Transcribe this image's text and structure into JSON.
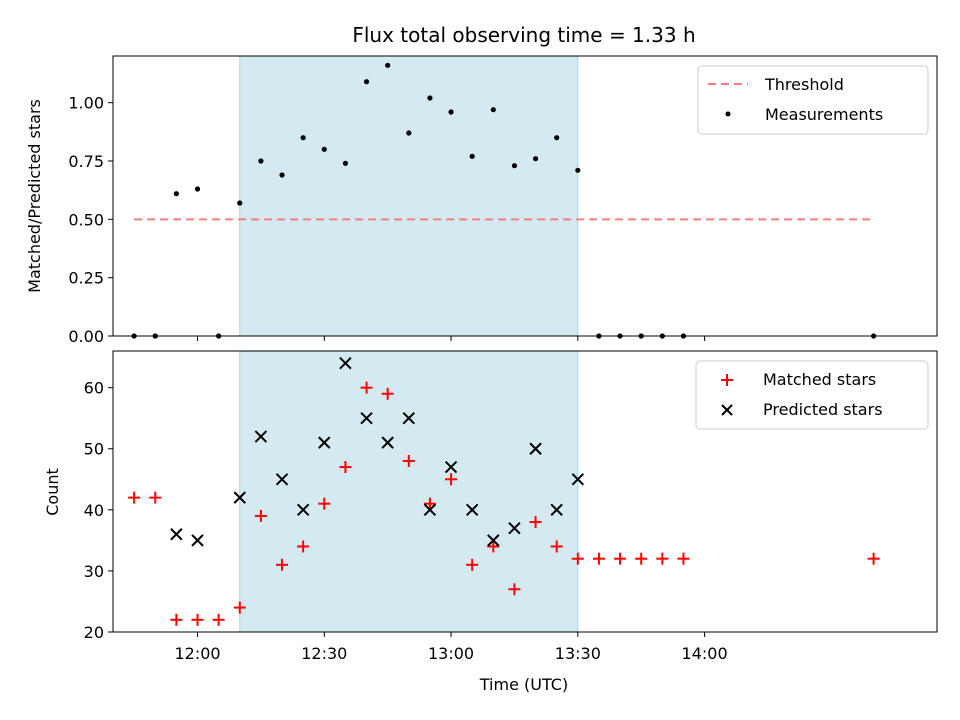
{
  "chart_data": [
    {
      "type": "scatter",
      "title": "Flux total observing time = 1.33 h",
      "ylabel": "Matched/Predicted stars",
      "xlabel": "",
      "xlim": [
        "11:40",
        "14:55"
      ],
      "ylim": [
        0,
        1.2
      ],
      "yticks": [
        "0.00",
        "0.25",
        "0.50",
        "0.75",
        "1.00"
      ],
      "ytick_values": [
        0,
        0.25,
        0.5,
        0.75,
        1.0
      ],
      "xtick_values": [
        "12:00",
        "12:30",
        "13:00",
        "13:30",
        "14:00"
      ],
      "shaded_span": [
        "12:10",
        "13:30"
      ],
      "shaded_color": "#d4eaf0",
      "threshold": {
        "name": "Threshold",
        "value": 0.5,
        "x": [
          "11:45",
          "14:40"
        ],
        "color": "#f08080"
      },
      "series": [
        {
          "name": "Measurements",
          "color": "#000000",
          "marker": "dot",
          "x": [
            "11:45",
            "11:50",
            "11:55",
            "12:00",
            "12:05",
            "12:10",
            "12:15",
            "12:20",
            "12:25",
            "12:30",
            "12:35",
            "12:40",
            "12:45",
            "12:50",
            "12:55",
            "13:00",
            "13:05",
            "13:10",
            "13:15",
            "13:20",
            "13:25",
            "13:30",
            "13:35",
            "13:40",
            "13:45",
            "13:50",
            "13:55",
            "14:40"
          ],
          "y": [
            0,
            0,
            0.61,
            0.63,
            0,
            0.57,
            0.75,
            0.69,
            0.85,
            0.8,
            0.74,
            1.09,
            1.16,
            0.87,
            1.02,
            0.96,
            0.77,
            0.97,
            0.73,
            0.76,
            0.85,
            0.71,
            0,
            0,
            0,
            0,
            0,
            0
          ]
        }
      ],
      "legend": {
        "placement": "top-right",
        "entries": [
          "Threshold",
          "Measurements"
        ]
      }
    },
    {
      "type": "scatter",
      "title": "",
      "ylabel": "Count",
      "xlabel": "Time (UTC)",
      "xlim": [
        "11:40",
        "14:55"
      ],
      "ylim": [
        20,
        66
      ],
      "yticks": [
        "20",
        "30",
        "40",
        "50",
        "60"
      ],
      "ytick_values": [
        20,
        30,
        40,
        50,
        60
      ],
      "xticks": [
        "12:00",
        "12:30",
        "13:00",
        "13:30",
        "14:00"
      ],
      "xtick_values": [
        "12:00",
        "12:30",
        "13:00",
        "13:30",
        "14:00"
      ],
      "shaded_span": [
        "12:10",
        "13:30"
      ],
      "shaded_color": "#d4eaf0",
      "series": [
        {
          "name": "Matched stars",
          "color": "#ff0000",
          "marker": "plus",
          "x": [
            "11:45",
            "11:50",
            "11:55",
            "12:00",
            "12:05",
            "12:10",
            "12:15",
            "12:20",
            "12:25",
            "12:30",
            "12:35",
            "12:40",
            "12:45",
            "12:50",
            "12:55",
            "13:00",
            "13:05",
            "13:10",
            "13:15",
            "13:20",
            "13:25",
            "13:30",
            "13:35",
            "13:40",
            "13:45",
            "13:50",
            "13:55",
            "14:40"
          ],
          "y": [
            42,
            42,
            22,
            22,
            22,
            24,
            39,
            31,
            34,
            41,
            47,
            60,
            59,
            48,
            41,
            45,
            31,
            34,
            27,
            38,
            34,
            32,
            32,
            32,
            32,
            32,
            32,
            32
          ]
        },
        {
          "name": "Predicted stars",
          "color": "#000000",
          "marker": "x",
          "x": [
            "11:55",
            "12:00",
            "12:10",
            "12:15",
            "12:20",
            "12:25",
            "12:30",
            "12:35",
            "12:40",
            "12:45",
            "12:50",
            "12:55",
            "13:00",
            "13:05",
            "13:10",
            "13:15",
            "13:20",
            "13:25",
            "13:30"
          ],
          "y": [
            36,
            35,
            42,
            52,
            45,
            40,
            51,
            64,
            55,
            51,
            55,
            40,
            47,
            40,
            35,
            37,
            50,
            40,
            45
          ]
        }
      ],
      "legend": {
        "placement": "top-right",
        "entries": [
          "Matched stars",
          "Predicted stars"
        ]
      }
    }
  ]
}
